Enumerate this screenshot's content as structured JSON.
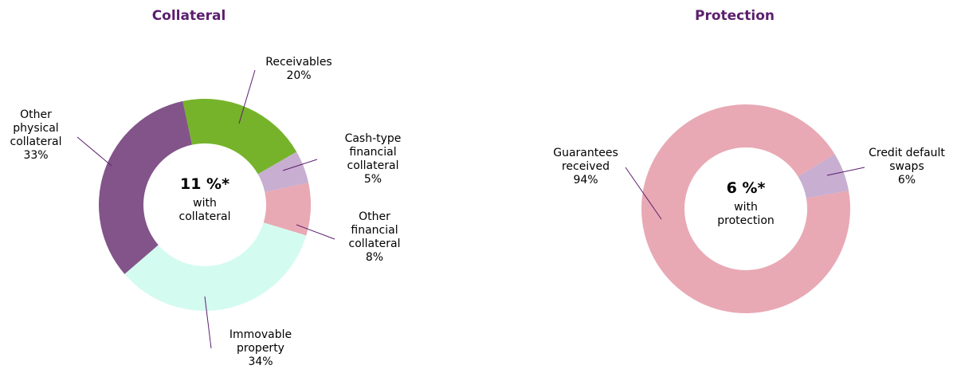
{
  "chart_data": [
    {
      "type": "donut",
      "title": "Collateral",
      "categories": [
        "Receivables",
        "Cash-type financial collateral",
        "Other financial collateral",
        "Immovable property",
        "Other physical collateral"
      ],
      "values": [
        20,
        5,
        8,
        34,
        33
      ],
      "value_labels": [
        "20%",
        "5%",
        "8%",
        "34%",
        "33%"
      ],
      "colors": [
        "#76b32b",
        "#c8aed0",
        "#e8a9b4",
        "#d4fbf0",
        "#825489"
      ],
      "center_label": "11 %*",
      "center_sublabel": "with collateral"
    },
    {
      "type": "donut",
      "title": "Protection",
      "categories": [
        "Guarantees received",
        "Credit default swaps"
      ],
      "values": [
        94,
        6
      ],
      "value_labels": [
        "94%",
        "6%"
      ],
      "colors": [
        "#e8a9b4",
        "#c8aed0"
      ],
      "center_label": "6 %*",
      "center_sublabel": "with protection"
    }
  ]
}
